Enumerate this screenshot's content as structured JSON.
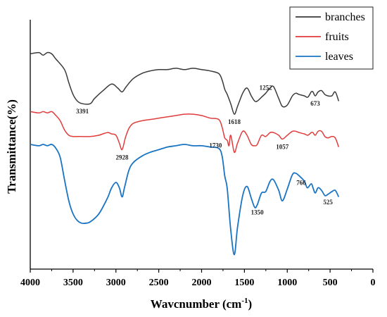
{
  "chart_data": {
    "type": "line",
    "title": "",
    "xlabel": "Wavcnumber (cm",
    "xlabel_sup": "-1",
    "xlabel_end": ")",
    "ylabel": "Transmittance(%)",
    "xlim": [
      4000,
      0
    ],
    "x_ticks": [
      "4000",
      "3500",
      "3000",
      "2500",
      "2000",
      "1500",
      "1000",
      "500",
      "0"
    ],
    "y_ticks_shown": false,
    "grid": false,
    "legend_position": "top-right",
    "series": [
      {
        "name": "branches",
        "color": "#3a3a3a",
        "x": [
          4000,
          3900,
          3850,
          3800,
          3750,
          3700,
          3600,
          3550,
          3500,
          3450,
          3391,
          3300,
          3250,
          3150,
          3050,
          2980,
          2928,
          2880,
          2800,
          2700,
          2600,
          2500,
          2400,
          2300,
          2200,
          2100,
          2000,
          1900,
          1800,
          1760,
          1730,
          1700,
          1660,
          1618,
          1580,
          1520,
          1470,
          1420,
          1380,
          1350,
          1300,
          1252,
          1200,
          1160,
          1100,
          1057,
          1000,
          940,
          900,
          860,
          800,
          760,
          720,
          700,
          673,
          640,
          600,
          560,
          525,
          480,
          440,
          400
        ],
        "y": [
          84,
          85,
          83,
          85,
          84,
          80,
          72,
          62,
          53,
          48,
          46,
          46,
          50,
          56,
          61,
          58,
          55,
          59,
          65,
          69,
          71,
          72,
          72,
          73,
          72,
          73,
          72,
          71,
          69,
          64,
          57,
          53,
          46,
          38,
          44,
          54,
          58,
          52,
          48,
          48,
          51,
          54,
          58,
          59,
          50,
          44,
          45,
          52,
          54,
          53,
          52,
          51,
          55,
          55,
          52,
          55,
          56,
          53,
          52,
          52,
          55,
          48
        ]
      },
      {
        "name": "fruits",
        "color": "#e03c3c",
        "x": [
          4000,
          3900,
          3850,
          3800,
          3750,
          3700,
          3650,
          3600,
          3550,
          3500,
          3450,
          3400,
          3300,
          3200,
          3100,
          3050,
          3000,
          2960,
          2928,
          2890,
          2850,
          2800,
          2700,
          2600,
          2500,
          2400,
          2300,
          2200,
          2100,
          2000,
          1900,
          1800,
          1760,
          1730,
          1700,
          1680,
          1660,
          1618,
          1580,
          1520,
          1470,
          1420,
          1380,
          1350,
          1300,
          1252,
          1200,
          1160,
          1100,
          1057,
          1000,
          940,
          900,
          860,
          800,
          760,
          720,
          700,
          673,
          640,
          600,
          560,
          525,
          480,
          440,
          400
        ],
        "y": [
          40,
          39,
          40,
          39,
          40,
          37,
          33,
          26,
          22,
          21,
          21,
          21,
          21,
          22,
          24,
          23,
          22,
          16,
          11,
          20,
          27,
          31,
          33,
          34,
          35,
          36,
          37,
          38,
          38,
          37,
          35,
          34,
          28,
          20,
          18,
          14,
          22,
          9,
          16,
          25,
          22,
          15,
          14,
          15,
          22,
          21,
          24,
          24,
          22,
          19,
          22,
          25,
          25,
          24,
          23,
          22,
          24,
          24,
          22,
          25,
          25,
          21,
          20,
          21,
          20,
          13
        ]
      },
      {
        "name": "leaves",
        "color": "#1a74c4",
        "x": [
          4000,
          3900,
          3850,
          3800,
          3750,
          3700,
          3650,
          3600,
          3550,
          3500,
          3450,
          3400,
          3350,
          3300,
          3200,
          3100,
          3050,
          3000,
          2960,
          2928,
          2900,
          2850,
          2800,
          2700,
          2600,
          2500,
          2400,
          2300,
          2200,
          2100,
          2000,
          1900,
          1800,
          1760,
          1730,
          1700,
          1660,
          1618,
          1580,
          1520,
          1470,
          1420,
          1380,
          1350,
          1300,
          1252,
          1200,
          1160,
          1100,
          1057,
          1000,
          940,
          900,
          860,
          800,
          766,
          720,
          700,
          673,
          640,
          600,
          560,
          525,
          480,
          440,
          400
        ],
        "y": [
          15,
          14,
          15,
          14,
          15,
          12,
          5,
          -12,
          -28,
          -38,
          -43,
          -45,
          -45,
          -44,
          -38,
          -26,
          -18,
          -14,
          -18,
          -25,
          -18,
          -5,
          1,
          6,
          9,
          11,
          13,
          14,
          15,
          14,
          14,
          13,
          12,
          6,
          -9,
          -19,
          -50,
          -69,
          -48,
          -24,
          -17,
          -26,
          -33,
          -31,
          -22,
          -21,
          -13,
          -12,
          -20,
          -28,
          -19,
          -8,
          -7,
          -9,
          -13,
          -18,
          -15,
          -18,
          -22,
          -18,
          -20,
          -24,
          -23,
          -21,
          -20,
          -25
        ]
      }
    ],
    "annotations": [
      {
        "text": "3391",
        "x": 3391,
        "y": 46,
        "position": "below"
      },
      {
        "text": "1618",
        "x": 1618,
        "y": 38,
        "position": "below"
      },
      {
        "text": "1252",
        "x": 1252,
        "y": 54,
        "position": "above"
      },
      {
        "text": "673",
        "x": 673,
        "y": 52,
        "position": "below"
      },
      {
        "text": "2928",
        "x": 2928,
        "y": 11,
        "position": "below"
      },
      {
        "text": "1730",
        "x": 1730,
        "y": 20,
        "position": "below-left"
      },
      {
        "text": "1057",
        "x": 1057,
        "y": 19,
        "position": "below"
      },
      {
        "text": "1350",
        "x": 1350,
        "y": -31,
        "position": "below"
      },
      {
        "text": "766",
        "x": 766,
        "y": -18,
        "position": "above-left"
      },
      {
        "text": "525",
        "x": 525,
        "y": -23,
        "position": "below"
      }
    ]
  }
}
